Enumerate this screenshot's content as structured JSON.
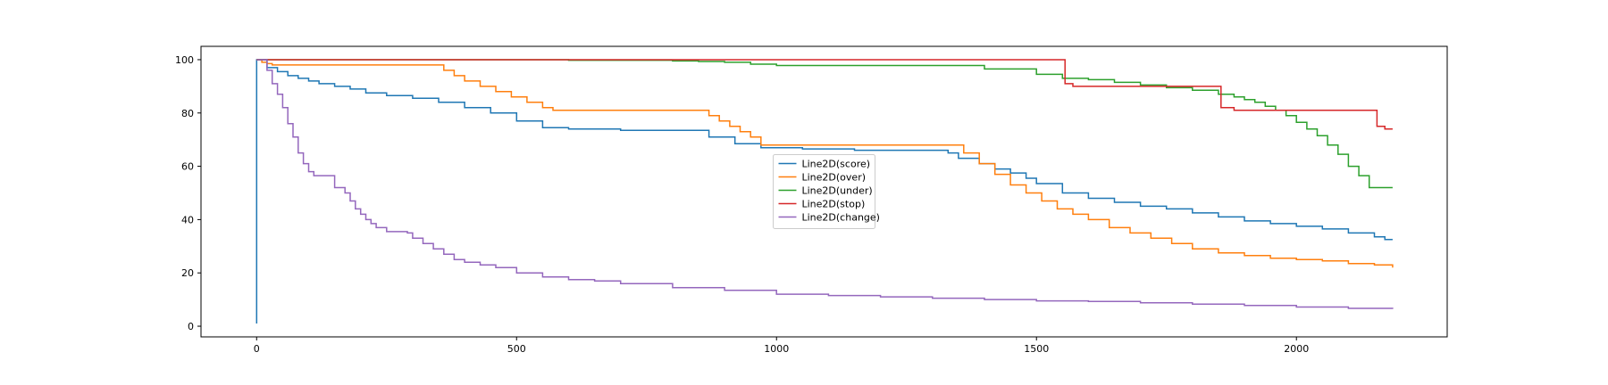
{
  "chart_data": {
    "type": "line",
    "title": "",
    "xlabel": "",
    "ylabel": "",
    "xlim": [
      -107,
      2290
    ],
    "ylim": [
      -4,
      105
    ],
    "xticks": [
      0,
      500,
      1000,
      1500,
      2000
    ],
    "yticks": [
      0,
      20,
      40,
      60,
      80,
      100
    ],
    "grid": false,
    "legend_position": "center",
    "series": [
      {
        "name": "Line2D(score)",
        "color": "#1f77b4",
        "x": [
          0,
          0,
          20,
          40,
          60,
          80,
          100,
          120,
          150,
          180,
          210,
          250,
          300,
          350,
          400,
          450,
          500,
          550,
          600,
          700,
          800,
          870,
          920,
          970,
          1050,
          1150,
          1250,
          1330,
          1350,
          1390,
          1420,
          1450,
          1480,
          1500,
          1550,
          1600,
          1650,
          1700,
          1750,
          1800,
          1850,
          1900,
          1950,
          2000,
          2050,
          2100,
          2150,
          2170,
          2185
        ],
        "y": [
          1,
          100,
          97,
          95.5,
          94,
          93,
          92,
          91,
          90,
          89,
          87.5,
          86.5,
          85.5,
          84,
          82,
          80,
          77,
          74.5,
          74,
          73.5,
          73.5,
          71,
          68.5,
          67,
          66.5,
          66,
          66,
          65,
          63,
          61,
          59,
          57.5,
          55.5,
          53.5,
          50,
          48,
          46.5,
          45,
          44,
          42.5,
          41,
          39.5,
          38.5,
          37.5,
          36.5,
          35,
          33.5,
          32.5,
          32.5
        ]
      },
      {
        "name": "Line2D(over)",
        "color": "#ff7f0e",
        "x": [
          0,
          10,
          20,
          30,
          340,
          360,
          380,
          400,
          430,
          460,
          490,
          520,
          550,
          570,
          850,
          870,
          890,
          910,
          930,
          950,
          970,
          1340,
          1360,
          1390,
          1420,
          1450,
          1480,
          1510,
          1540,
          1570,
          1600,
          1640,
          1680,
          1720,
          1760,
          1800,
          1850,
          1900,
          1950,
          2000,
          2050,
          2100,
          2150,
          2185
        ],
        "y": [
          100,
          99,
          98.5,
          98,
          98,
          96,
          94,
          92,
          90,
          88,
          86,
          84,
          82,
          81,
          81,
          79,
          77,
          75,
          73,
          71,
          68,
          68,
          65,
          61,
          57,
          53,
          50,
          47,
          44,
          42,
          40,
          37,
          35,
          33,
          31,
          29,
          27.5,
          26.5,
          25.5,
          25,
          24.5,
          23.5,
          23,
          22
        ]
      },
      {
        "name": "Line2D(under)",
        "color": "#2ca02c",
        "x": [
          0,
          400,
          500,
          600,
          700,
          800,
          850,
          900,
          950,
          1000,
          1100,
          1200,
          1300,
          1400,
          1500,
          1550,
          1600,
          1650,
          1700,
          1750,
          1800,
          1850,
          1880,
          1900,
          1920,
          1940,
          1960,
          1980,
          2000,
          2020,
          2040,
          2060,
          2080,
          2100,
          2120,
          2140,
          2160,
          2180,
          2185
        ],
        "y": [
          100,
          100,
          100,
          99.8,
          99.8,
          99.5,
          99.3,
          99,
          98.3,
          97.8,
          97.8,
          97.8,
          97.8,
          96.5,
          94.5,
          93,
          92.5,
          91.5,
          90.5,
          89.5,
          88.5,
          87,
          86,
          85,
          84,
          82.5,
          81,
          79,
          76.5,
          74,
          71.5,
          68,
          64.5,
          60,
          56.5,
          52,
          52,
          52,
          52
        ]
      },
      {
        "name": "Line2D(stop)",
        "color": "#d62728",
        "x": [
          0,
          1550,
          1555,
          1570,
          1850,
          1855,
          1880,
          1900,
          2150,
          2155,
          2170,
          2185
        ],
        "y": [
          100,
          100,
          91,
          90,
          90,
          82,
          81,
          81,
          81,
          75,
          74,
          74
        ]
      },
      {
        "name": "Line2D(change)",
        "color": "#9467bd",
        "x": [
          0,
          20,
          30,
          40,
          50,
          60,
          70,
          80,
          90,
          100,
          110,
          120,
          150,
          170,
          180,
          190,
          200,
          210,
          220,
          230,
          250,
          290,
          300,
          320,
          340,
          360,
          380,
          400,
          430,
          460,
          500,
          550,
          600,
          650,
          700,
          800,
          900,
          1000,
          1100,
          1200,
          1300,
          1400,
          1500,
          1600,
          1700,
          1800,
          1900,
          2000,
          2100,
          2185
        ],
        "y": [
          100,
          96,
          91,
          87,
          82,
          76,
          71,
          65,
          61,
          58,
          56.5,
          56.5,
          52,
          50,
          47,
          44,
          42,
          40,
          38.5,
          37,
          35.5,
          35,
          33,
          31,
          29,
          27,
          25,
          24,
          23,
          22,
          20,
          18.5,
          17.5,
          17,
          16,
          14.5,
          13.5,
          12,
          11.5,
          11,
          10.5,
          10,
          9.5,
          9.3,
          8.8,
          8.3,
          7.8,
          7.2,
          6.7,
          6.5
        ]
      }
    ]
  }
}
